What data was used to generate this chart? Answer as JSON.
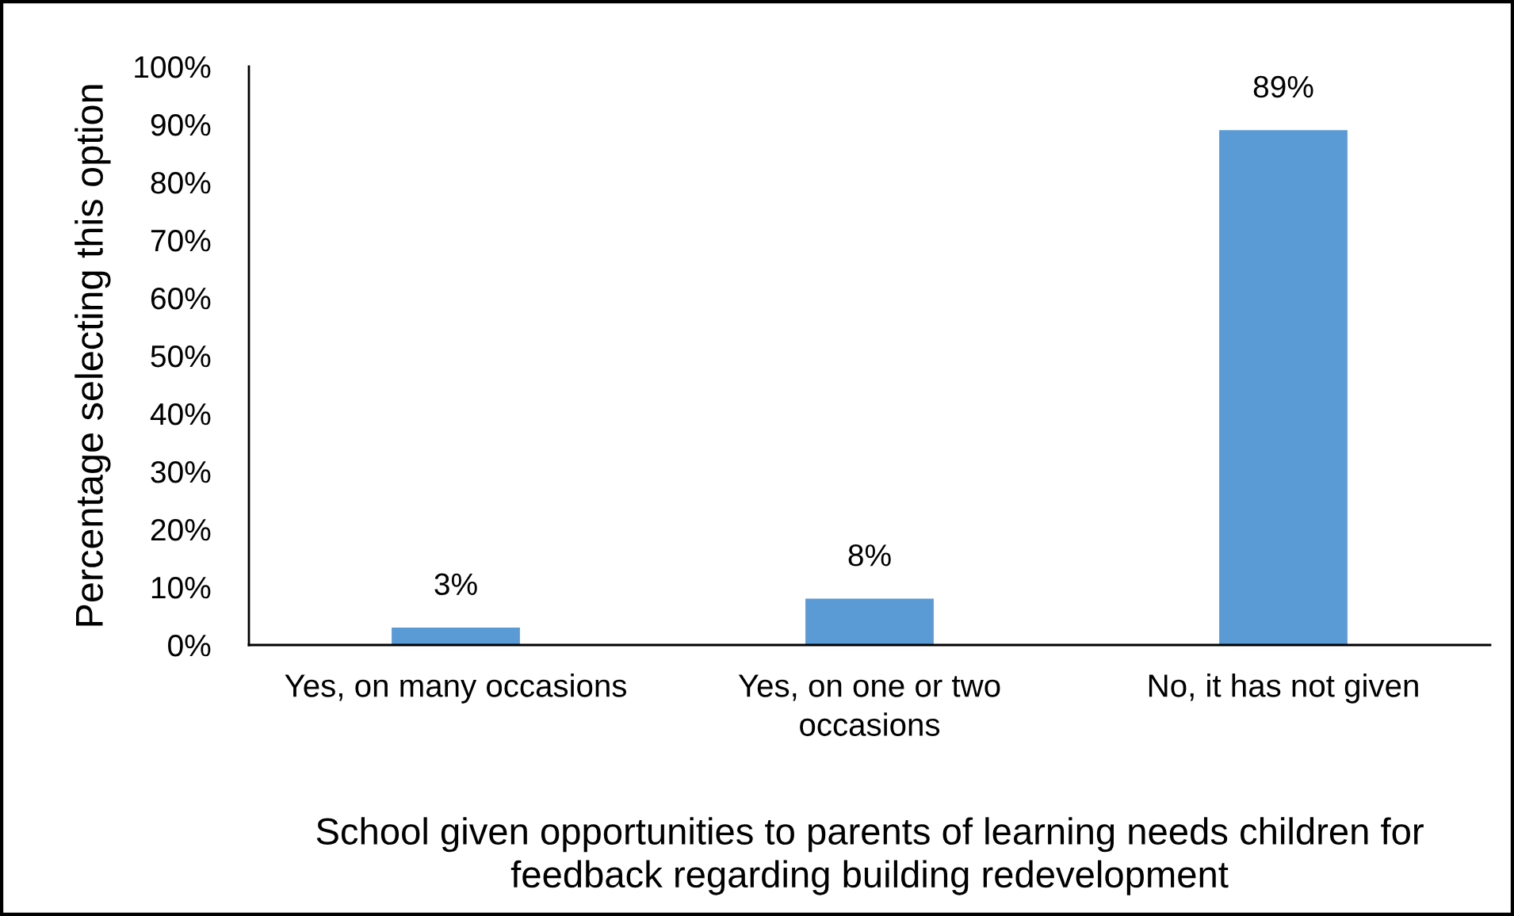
{
  "chart_data": {
    "type": "bar",
    "categories": [
      "Yes, on many occasions",
      "Yes, on one or two\noccasions",
      "No, it has not given"
    ],
    "values": [
      3,
      8,
      89
    ],
    "color": "#5b9bd5",
    "value_labels": [
      "3%",
      "8%",
      "89%"
    ],
    "ylabel": "Percentage selecting this option",
    "xlabel": "School given opportunities to parents of learning needs children for\nfeedback regarding building redevelopment",
    "ylim": [
      0,
      100
    ],
    "yticks": [
      {
        "value": 0,
        "label": "0%"
      },
      {
        "value": 10,
        "label": "10%"
      },
      {
        "value": 20,
        "label": "20%"
      },
      {
        "value": 30,
        "label": "30%"
      },
      {
        "value": 40,
        "label": "40%"
      },
      {
        "value": 50,
        "label": "50%"
      },
      {
        "value": 60,
        "label": "60%"
      },
      {
        "value": 70,
        "label": "70%"
      },
      {
        "value": 80,
        "label": "80%"
      },
      {
        "value": 90,
        "label": "90%"
      },
      {
        "value": 100,
        "label": "100%"
      }
    ],
    "grid": false
  }
}
